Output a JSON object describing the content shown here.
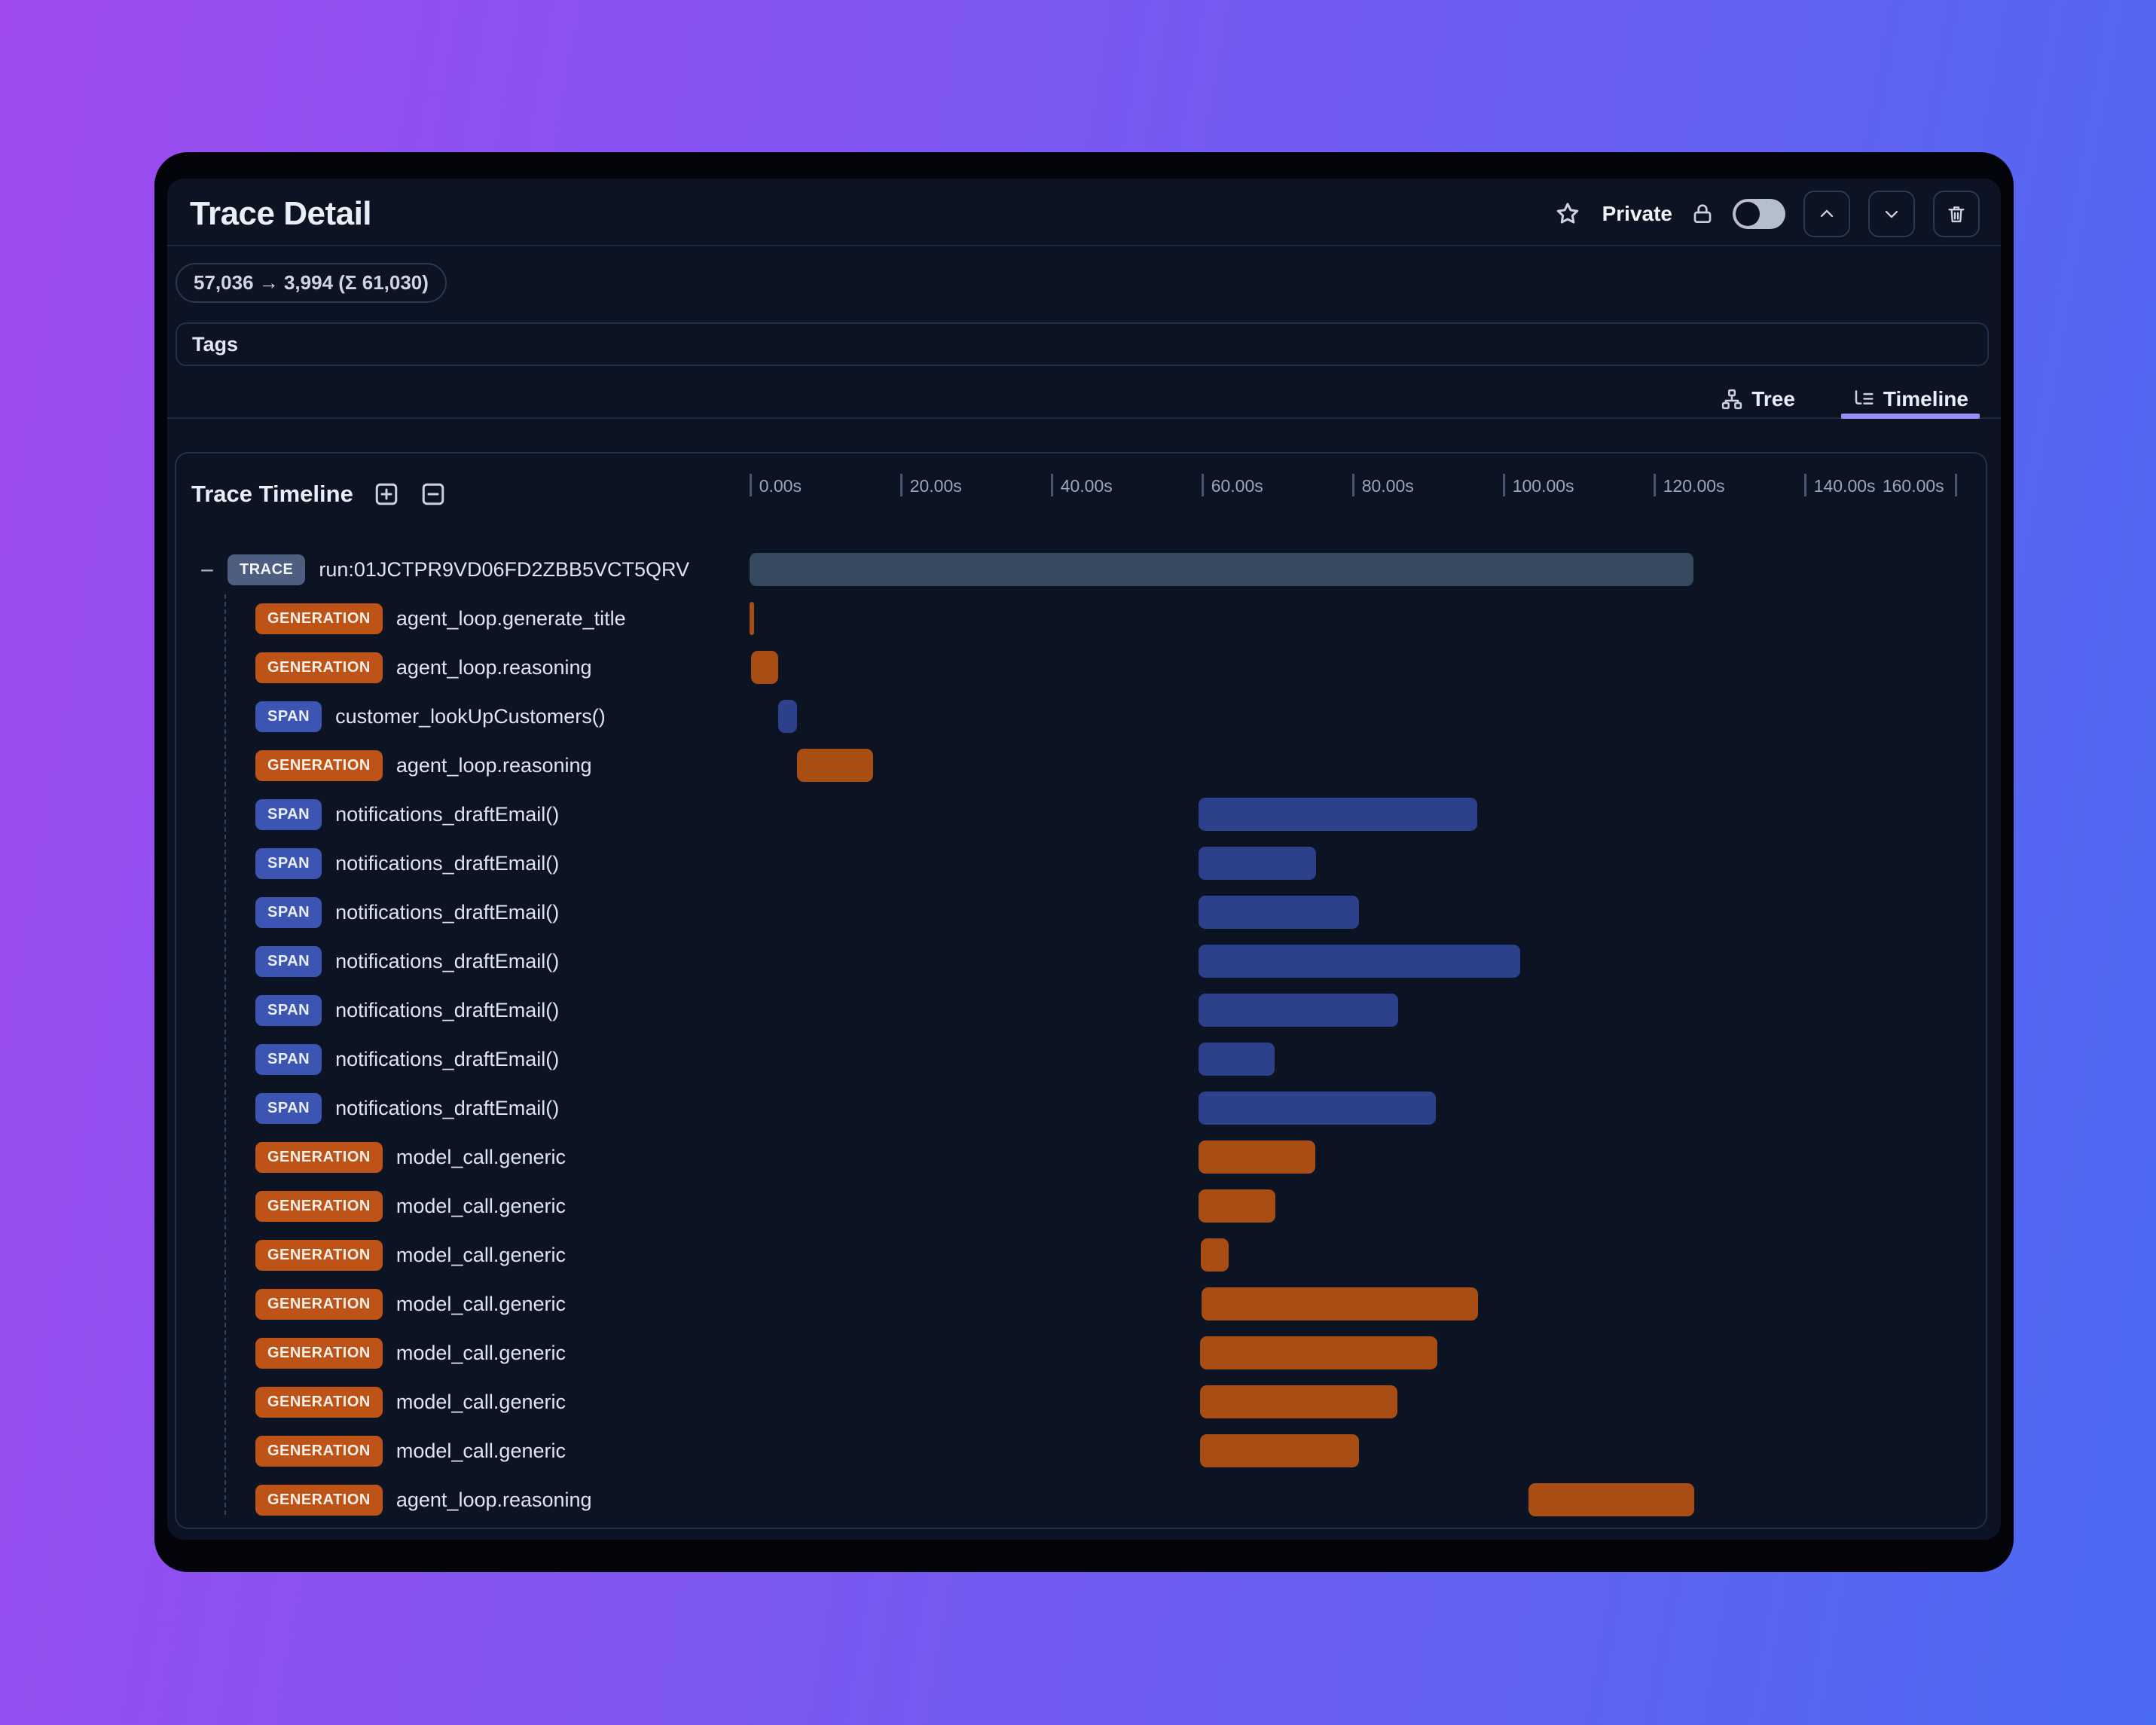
{
  "header": {
    "title": "Trace Detail",
    "privacy_label": "Private",
    "privacy_toggle_state": "off"
  },
  "token_badge": "57,036 → 3,994 (Σ 61,030)",
  "tags": {
    "label": "Tags"
  },
  "tabs": [
    {
      "label": "Tree",
      "icon": "sitemap-icon",
      "active": false
    },
    {
      "label": "Timeline",
      "icon": "list-tree-icon",
      "active": true
    }
  ],
  "timeline": {
    "title": "Trace Timeline",
    "expander_glyph": "−",
    "axis": {
      "unit": "seconds",
      "min_s": 0,
      "max_s": 160,
      "tick_interval_s": 20,
      "ticks": [
        {
          "label": "0.00s",
          "s": 0
        },
        {
          "label": "20.00s",
          "s": 20
        },
        {
          "label": "40.00s",
          "s": 40
        },
        {
          "label": "60.00s",
          "s": 60
        },
        {
          "label": "80.00s",
          "s": 80
        },
        {
          "label": "100.00s",
          "s": 100
        },
        {
          "label": "120.00s",
          "s": 120
        },
        {
          "label": "140.00s",
          "s": 140
        },
        {
          "label": "160.00s",
          "s": 160
        }
      ]
    },
    "rows": [
      {
        "type": "TRACE",
        "name": "run:01JCTPR9VD06FD2ZBB5VCT5QRV",
        "depth": 0,
        "kind": "trace",
        "start_s": 0,
        "end_s": 125.3
      },
      {
        "type": "GENERATION",
        "name": "agent_loop.generate_title",
        "depth": 1,
        "kind": "generation",
        "start_s": 0,
        "end_s": 0.6
      },
      {
        "type": "GENERATION",
        "name": "agent_loop.reasoning",
        "depth": 1,
        "kind": "generation",
        "start_s": 0.2,
        "end_s": 3.8
      },
      {
        "type": "SPAN",
        "name": "customer_lookUpCustomers()",
        "depth": 1,
        "kind": "span",
        "start_s": 3.8,
        "end_s": 6.3
      },
      {
        "type": "GENERATION",
        "name": "agent_loop.reasoning",
        "depth": 1,
        "kind": "generation",
        "start_s": 6.3,
        "end_s": 16.4
      },
      {
        "type": "SPAN",
        "name": "notifications_draftEmail()",
        "depth": 1,
        "kind": "span",
        "start_s": 59.6,
        "end_s": 96.6
      },
      {
        "type": "SPAN",
        "name": "notifications_draftEmail()",
        "depth": 1,
        "kind": "span",
        "start_s": 59.6,
        "end_s": 75.2
      },
      {
        "type": "SPAN",
        "name": "notifications_draftEmail()",
        "depth": 1,
        "kind": "span",
        "start_s": 59.6,
        "end_s": 80.9
      },
      {
        "type": "SPAN",
        "name": "notifications_draftEmail()",
        "depth": 1,
        "kind": "span",
        "start_s": 59.6,
        "end_s": 102.3
      },
      {
        "type": "SPAN",
        "name": "notifications_draftEmail()",
        "depth": 1,
        "kind": "span",
        "start_s": 59.6,
        "end_s": 86.1
      },
      {
        "type": "SPAN",
        "name": "notifications_draftEmail()",
        "depth": 1,
        "kind": "span",
        "start_s": 59.6,
        "end_s": 69.7
      },
      {
        "type": "SPAN",
        "name": "notifications_draftEmail()",
        "depth": 1,
        "kind": "span",
        "start_s": 59.6,
        "end_s": 91.1
      },
      {
        "type": "GENERATION",
        "name": "model_call.generic",
        "depth": 1,
        "kind": "generation",
        "start_s": 59.6,
        "end_s": 75.1
      },
      {
        "type": "GENERATION",
        "name": "model_call.generic",
        "depth": 1,
        "kind": "generation",
        "start_s": 59.6,
        "end_s": 69.8
      },
      {
        "type": "GENERATION",
        "name": "model_call.generic",
        "depth": 1,
        "kind": "generation",
        "start_s": 59.9,
        "end_s": 63.6
      },
      {
        "type": "GENERATION",
        "name": "model_call.generic",
        "depth": 1,
        "kind": "generation",
        "start_s": 60.0,
        "end_s": 96.7
      },
      {
        "type": "GENERATION",
        "name": "model_call.generic",
        "depth": 1,
        "kind": "generation",
        "start_s": 59.8,
        "end_s": 91.3
      },
      {
        "type": "GENERATION",
        "name": "model_call.generic",
        "depth": 1,
        "kind": "generation",
        "start_s": 59.8,
        "end_s": 86.0
      },
      {
        "type": "GENERATION",
        "name": "model_call.generic",
        "depth": 1,
        "kind": "generation",
        "start_s": 59.8,
        "end_s": 80.9
      },
      {
        "type": "GENERATION",
        "name": "agent_loop.reasoning",
        "depth": 1,
        "kind": "generation",
        "start_s": 103.4,
        "end_s": 125.4
      }
    ]
  },
  "colors": {
    "background_gradient": [
      "#9f4bf1",
      "#4b6af3"
    ],
    "window": "#020409",
    "panel": "#0c1322",
    "accent_tab_underline": "#9a8ef5",
    "trace_badge": "#4d5e80",
    "generation_badge": "#bd5316",
    "span_badge": "#3c55b2",
    "trace_bar": "#36495f",
    "generation_bar": "#a84d13",
    "span_bar": "#2d408c"
  }
}
